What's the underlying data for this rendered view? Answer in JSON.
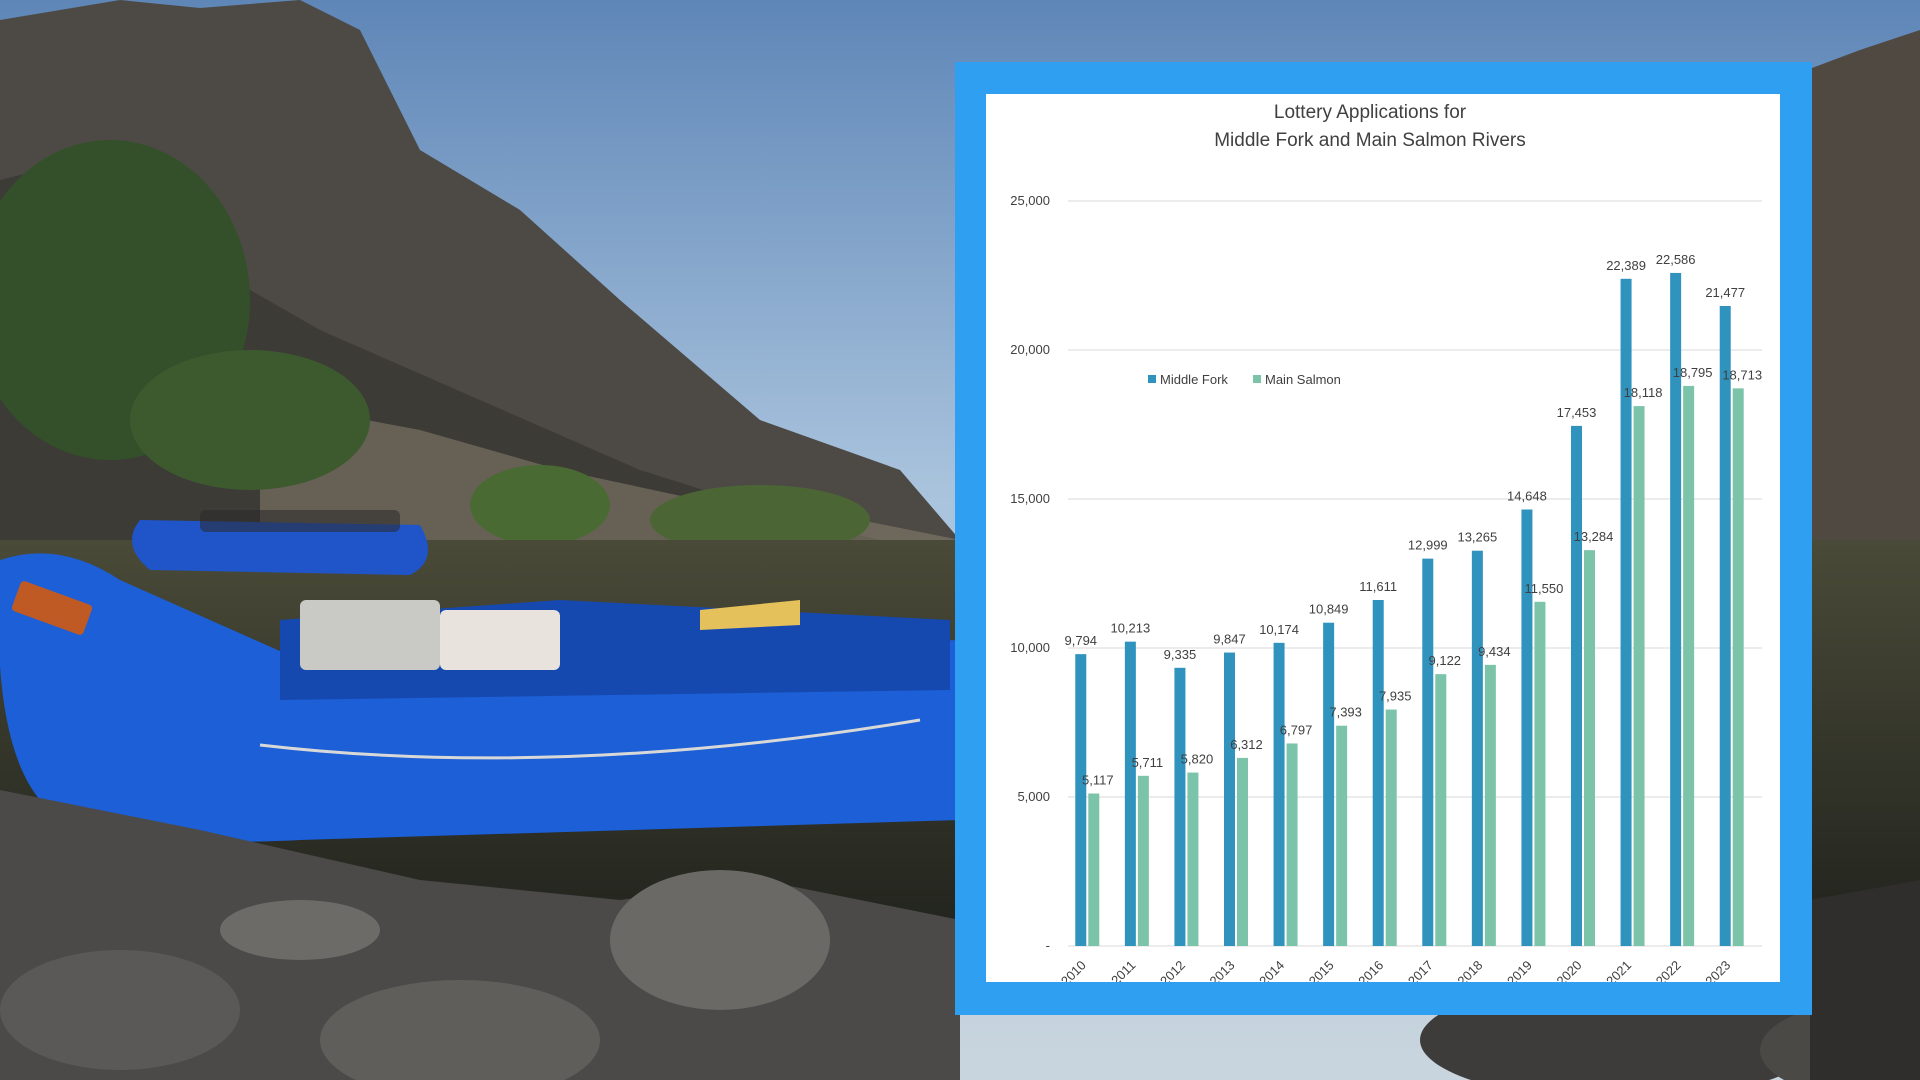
{
  "chart_data": {
    "type": "bar",
    "title_lines": [
      "Lottery Applications for",
      "Middle Fork and Main Salmon Rivers"
    ],
    "xlabel": "",
    "ylabel": "",
    "categories": [
      "2010",
      "2011",
      "2012",
      "2013",
      "2014",
      "2015",
      "2016",
      "2017",
      "2018",
      "2019",
      "2020",
      "2021",
      "2022",
      "2023"
    ],
    "series": [
      {
        "name": "Middle Fork",
        "color": "#2f93bd",
        "values": [
          9794,
          10213,
          9335,
          9847,
          10174,
          10849,
          11611,
          12999,
          13265,
          14648,
          17453,
          22389,
          22586,
          21477
        ],
        "labels": [
          "9,794",
          "10,213",
          "9,335",
          "9,847",
          "10,174",
          "10,849",
          "11,611",
          "12,999",
          "13,265",
          "14,648",
          "17,453",
          "22,389",
          "22,586",
          "21,477"
        ]
      },
      {
        "name": "Main Salmon",
        "color": "#7cc4a9",
        "values": [
          5117,
          5711,
          5820,
          6312,
          6797,
          7393,
          7935,
          9122,
          9434,
          11550,
          13284,
          18118,
          18795,
          18713
        ],
        "labels": [
          "5,117",
          "5,711",
          "5,820",
          "6,312",
          "6,797",
          "7,393",
          "7,935",
          "9,122",
          "9,434",
          "11,550",
          "13,284",
          "18,118",
          "18,795",
          "18,713"
        ]
      }
    ],
    "ylim": [
      0,
      25000
    ],
    "yticks": [
      0,
      5000,
      10000,
      15000,
      20000,
      25000
    ],
    "ytick_labels": [
      "-",
      "5,000",
      "10,000",
      "15,000",
      "20,000",
      "25,000"
    ],
    "grid": true,
    "legend_position": "upper-left inside plot"
  },
  "colors": {
    "frame": "#2f9ff2",
    "panel": "#ffffff",
    "gridline": "#d9d9d9",
    "text": "#404040"
  }
}
